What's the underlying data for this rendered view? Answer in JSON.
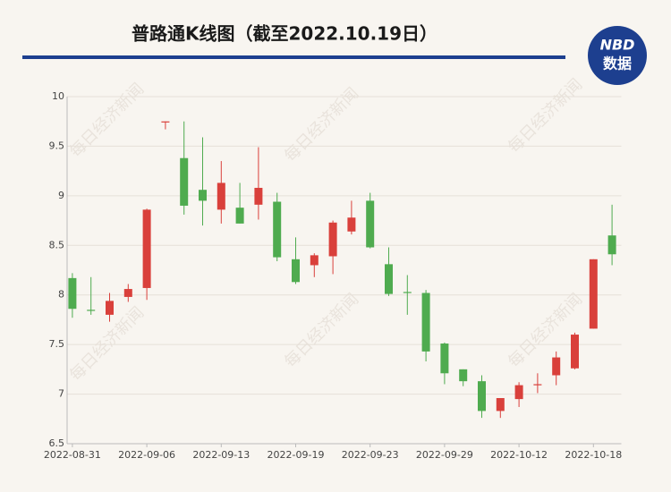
{
  "chart_data": {
    "type": "candlestick",
    "title": "普路通K线图（截至2022.10.19日）",
    "categories": [
      "2022-08-31",
      null,
      null,
      null,
      "2022-09-06",
      null,
      null,
      null,
      "2022-09-13",
      null,
      null,
      null,
      "2022-09-19",
      null,
      null,
      null,
      "2022-09-23",
      null,
      null,
      null,
      "2022-09-29",
      null,
      null,
      null,
      "2022-10-12",
      null,
      null,
      null,
      "2022-10-18",
      null
    ],
    "open": [
      8.17,
      7.85,
      7.8,
      7.98,
      8.07,
      9.74,
      9.38,
      9.06,
      8.86,
      8.88,
      8.91,
      8.94,
      8.36,
      8.3,
      8.39,
      8.64,
      8.95,
      8.31,
      8.03,
      8.02,
      7.51,
      7.25,
      7.13,
      6.83,
      6.95,
      7.09,
      7.19,
      7.26,
      7.66,
      8.6
    ],
    "high": [
      8.22,
      8.18,
      8.02,
      8.11,
      8.87,
      9.75,
      9.75,
      9.59,
      9.35,
      9.13,
      9.49,
      9.03,
      8.58,
      8.42,
      8.75,
      8.95,
      9.03,
      8.48,
      8.2,
      8.05,
      7.52,
      7.25,
      7.19,
      6.96,
      7.12,
      7.21,
      7.43,
      7.62,
      8.36,
      8.91
    ],
    "low": [
      7.77,
      7.8,
      7.73,
      7.93,
      7.95,
      9.67,
      8.81,
      8.7,
      8.72,
      8.72,
      8.76,
      8.34,
      8.11,
      8.18,
      8.21,
      8.61,
      8.47,
      7.99,
      7.8,
      7.33,
      7.1,
      7.08,
      6.76,
      6.76,
      6.87,
      7.01,
      7.09,
      7.25,
      7.66,
      8.3
    ],
    "close": [
      7.86,
      7.84,
      7.94,
      8.06,
      8.86,
      9.75,
      8.9,
      8.95,
      9.13,
      8.72,
      9.08,
      8.38,
      8.13,
      8.4,
      8.73,
      8.78,
      8.48,
      8.01,
      8.02,
      7.43,
      7.21,
      7.13,
      6.83,
      6.96,
      7.09,
      7.1,
      7.37,
      7.6,
      8.36,
      8.41
    ],
    "up_color": "#d9403b",
    "down_color": "#4fab4f",
    "ylim": [
      6.5,
      10
    ],
    "yticks": [
      6.5,
      7,
      7.5,
      8,
      8.5,
      9,
      9.5,
      10
    ],
    "grid": true
  },
  "logo": {
    "line1": "NBD",
    "line2": "数据"
  },
  "watermark": "每日经济新闻"
}
